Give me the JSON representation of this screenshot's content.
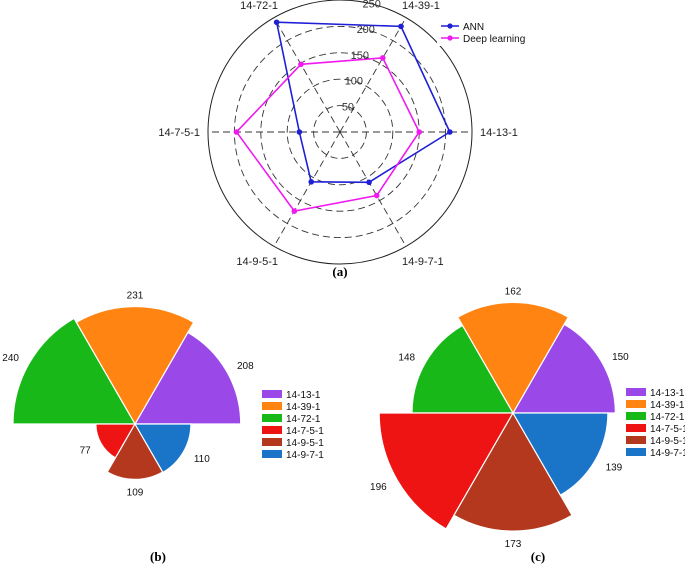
{
  "colors": {
    "ann": "#1f1fd6",
    "deep_learning": "#f01af0",
    "slices": [
      "#9a48e8",
      "#ff8412",
      "#18b818",
      "#ee1414",
      "#b4381e",
      "#1a74c8"
    ]
  },
  "chart_data": [
    {
      "id": "a",
      "type": "radar",
      "caption": "(a)",
      "categories": [
        "14-13-1",
        "14-39-1",
        "14-72-1",
        "14-7-5-1",
        "14-9-5-1",
        "14-9-7-1"
      ],
      "series": [
        {
          "name": "ANN",
          "values": [
            208,
            231,
            240,
            77,
            109,
            110
          ]
        },
        {
          "name": "Deep learning",
          "values": [
            150,
            162,
            148,
            196,
            173,
            139
          ]
        }
      ],
      "radial_ticks": [
        "50",
        "100",
        "150",
        "200",
        "250"
      ],
      "rlim": [
        0,
        250
      ],
      "legend_position": "top-right",
      "grid": true
    },
    {
      "id": "b",
      "type": "polar-area",
      "caption": "(b)",
      "categories": [
        "14-13-1",
        "14-39-1",
        "14-72-1",
        "14-7-5-1",
        "14-9-5-1",
        "14-9-7-1"
      ],
      "values": [
        208,
        231,
        240,
        77,
        109,
        110
      ],
      "value_labels": [
        "208",
        "231",
        "240",
        "77",
        "109",
        "110"
      ],
      "legend_position": "right"
    },
    {
      "id": "c",
      "type": "polar-area",
      "caption": "(c)",
      "categories": [
        "14-13-1",
        "14-39-1",
        "14-72-1",
        "14-7-5-1",
        "14-9-5-1",
        "14-9-7-1"
      ],
      "values": [
        150,
        162,
        148,
        196,
        173,
        139
      ],
      "value_labels": [
        "150",
        "162",
        "148",
        "196",
        "173",
        "139"
      ],
      "legend_position": "right"
    }
  ]
}
